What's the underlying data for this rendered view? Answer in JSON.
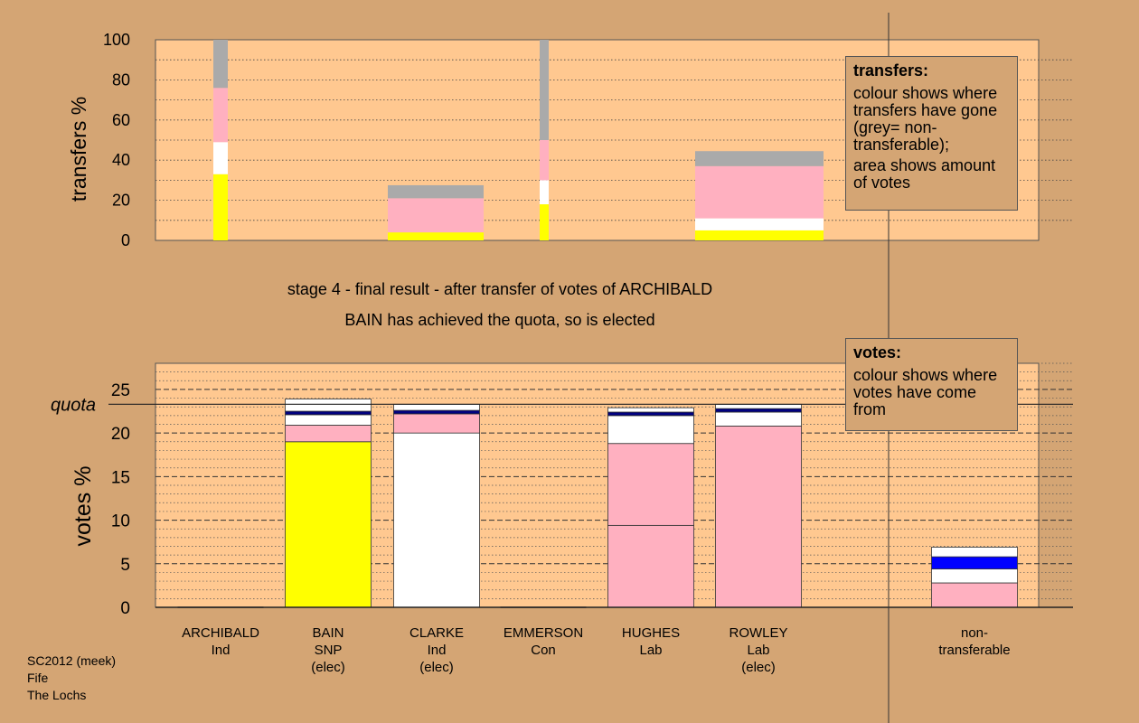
{
  "chart_data": [
    {
      "type": "bar",
      "ylabel": "transfers %",
      "ylim": [
        0,
        100
      ],
      "ytick_labels": [
        "0",
        "20",
        "40",
        "60",
        "80",
        "100"
      ],
      "bars": [
        {
          "segments": [
            {
              "color": "#ffff00",
              "value": 33
            },
            {
              "color": "#ffffff",
              "value": 16
            },
            {
              "color": "#ffb0c0",
              "value": 27
            },
            {
              "color": "#aaaaaa",
              "value": 24
            }
          ]
        },
        {
          "segments": [
            {
              "color": "#ffff00",
              "value": 4
            },
            {
              "color": "#ffb0c0",
              "value": 17
            },
            {
              "color": "#aaaaaa",
              "value": 6.5
            }
          ]
        },
        {
          "segments": [
            {
              "color": "#ffff00",
              "value": 18
            },
            {
              "color": "#ffffff",
              "value": 12
            },
            {
              "color": "#ffb0c0",
              "value": 20
            },
            {
              "color": "#aaaaaa",
              "value": 50
            }
          ]
        },
        {
          "segments": [
            {
              "color": "#ffff00",
              "value": 5
            },
            {
              "color": "#ffffff",
              "value": 6
            },
            {
              "color": "#ffb0c0",
              "value": 26
            },
            {
              "color": "#aaaaaa",
              "value": 7.5
            }
          ]
        }
      ]
    },
    {
      "type": "bar",
      "ylabel": "votes %",
      "ylim": [
        0,
        28
      ],
      "quota": 23.3,
      "quota_label": "quota",
      "ytick_labels": [
        "0",
        "5",
        "10",
        "15",
        "20",
        "25"
      ],
      "categories": [
        {
          "name": "ARCHIBALD",
          "party": "Ind",
          "status": ""
        },
        {
          "name": "BAIN",
          "party": "SNP",
          "status": "(elec)"
        },
        {
          "name": "CLARKE",
          "party": "Ind",
          "status": "(elec)"
        },
        {
          "name": "EMMERSON",
          "party": "Con",
          "status": ""
        },
        {
          "name": "HUGHES",
          "party": "Lab",
          "status": ""
        },
        {
          "name": "ROWLEY",
          "party": "Lab",
          "status": "(elec)"
        },
        {
          "name": "non-",
          "party": "transferable",
          "status": ""
        }
      ],
      "bars": [
        {
          "segments": []
        },
        {
          "segments": [
            {
              "color": "#ffff00",
              "value": 19.0
            },
            {
              "color": "#ffb0c0",
              "value": 1.9
            },
            {
              "color": "#ffffff",
              "value": 1.2
            },
            {
              "color": "#000080",
              "value": 0.4
            },
            {
              "color": "#ffffff",
              "value": 1.4
            }
          ]
        },
        {
          "segments": [
            {
              "color": "#ffffff",
              "value": 20.0
            },
            {
              "color": "#ffb0c0",
              "value": 2.2
            },
            {
              "color": "#000080",
              "value": 0.4
            },
            {
              "color": "#ffffff",
              "value": 0.7
            }
          ]
        },
        {
          "segments": []
        },
        {
          "segments": [
            {
              "color": "#ffb0c0",
              "value": 9.4
            },
            {
              "color": "#ffb0c0",
              "value": 9.4
            },
            {
              "color": "#ffffff",
              "value": 3.2
            },
            {
              "color": "#000080",
              "value": 0.4
            },
            {
              "color": "#ffffff",
              "value": 0.5
            }
          ]
        },
        {
          "segments": [
            {
              "color": "#ffb0c0",
              "value": 20.8
            },
            {
              "color": "#ffffff",
              "value": 1.6
            },
            {
              "color": "#000080",
              "value": 0.4
            },
            {
              "color": "#ffffff",
              "value": 0.5
            }
          ]
        },
        {
          "segments": [
            {
              "color": "#ffb0c0",
              "value": 2.8
            },
            {
              "color": "#ffffff",
              "value": 1.6
            },
            {
              "color": "#0000ff",
              "value": 1.4
            },
            {
              "color": "#ffffff",
              "value": 1.1
            }
          ]
        }
      ]
    }
  ],
  "stage_title": "stage 4 - final result - after transfer of votes of ARCHIBALD",
  "stage_subtitle": "BAIN has achieved the quota, so is elected",
  "transfers_box": {
    "heading": "transfers:",
    "line1": "colour shows where transfers have gone (grey= non-transferable);",
    "line2": "area shows amount of votes"
  },
  "votes_box": {
    "heading": "votes:",
    "line1": "colour shows where votes have come from"
  },
  "footer": {
    "line1": "SC2012 (meek)",
    "line2": "Fife",
    "line3": "The Lochs"
  },
  "colors": {
    "background": "#d4a574",
    "plot_area": "#ffc890",
    "gridline": "#555555"
  }
}
